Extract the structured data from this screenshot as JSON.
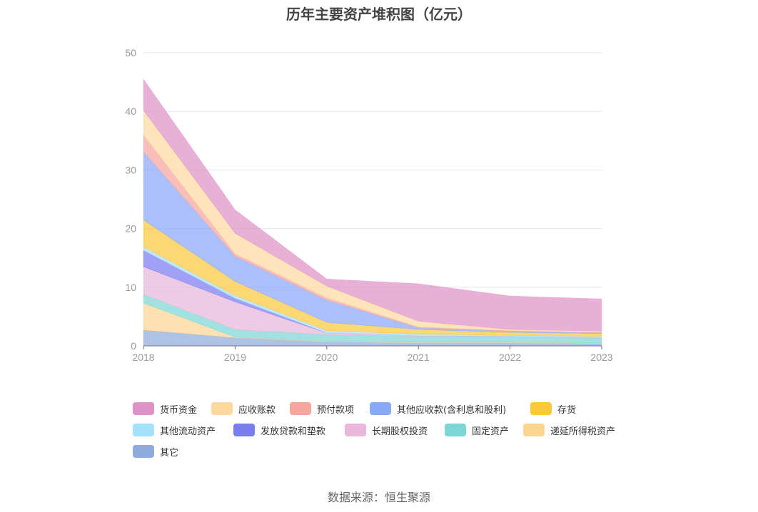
{
  "title": "历年主要资产堆积图（亿元）",
  "source": "数据来源：恒生聚源",
  "chart_data": {
    "type": "area",
    "stacked": true,
    "title": "历年主要资产堆积图（亿元）",
    "x": [
      "2018",
      "2019",
      "2020",
      "2021",
      "2022",
      "2023"
    ],
    "ylim": [
      0,
      50
    ],
    "yticks": [
      "0",
      "10",
      "20",
      "30",
      "40",
      "50"
    ],
    "grid": true,
    "legend_position": "bottom",
    "series": [
      {
        "name": "其它",
        "color": "#8faadc",
        "values": [
          2.7,
          1.4,
          0.7,
          0.5,
          0.5,
          0.4
        ]
      },
      {
        "name": "递延所得税资产",
        "color": "#fdd591",
        "values": [
          4.6,
          0.1,
          0.1,
          0.1,
          0.1,
          0.1
        ]
      },
      {
        "name": "固定资产",
        "color": "#7dd6d6",
        "values": [
          1.5,
          1.3,
          1.1,
          1.0,
          0.9,
          0.8
        ]
      },
      {
        "name": "长期股权投资",
        "color": "#e8b7da",
        "values": [
          4.7,
          4.7,
          0.3,
          0.1,
          0.1,
          0.1
        ]
      },
      {
        "name": "发放贷款和垫款",
        "color": "#7a7cf2",
        "values": [
          2.8,
          0.6,
          0.0,
          0.0,
          0.0,
          0.0
        ]
      },
      {
        "name": "其他流动资产",
        "color": "#a6e1fa",
        "values": [
          0.6,
          0.5,
          0.4,
          0.3,
          0.2,
          0.2
        ]
      },
      {
        "name": "存货",
        "color": "#fcc73b",
        "values": [
          4.6,
          2.4,
          1.4,
          0.8,
          0.5,
          0.5
        ]
      },
      {
        "name": "其他应收款(含利息和股利)",
        "color": "#8aa8f8",
        "values": [
          11.6,
          4.3,
          3.8,
          0.3,
          0.2,
          0.1
        ]
      },
      {
        "name": "预付款项",
        "color": "#f8a5a0",
        "values": [
          2.9,
          0.4,
          0.4,
          0.1,
          0.1,
          0.1
        ]
      },
      {
        "name": "应收账款",
        "color": "#fdd9a0",
        "values": [
          4.2,
          3.5,
          2.0,
          1.0,
          0.2,
          0.2
        ]
      },
      {
        "name": "货币资金",
        "color": "#df92c8",
        "values": [
          5.3,
          4.0,
          1.2,
          6.4,
          5.7,
          5.5
        ]
      }
    ],
    "legend_order": [
      "货币资金",
      "应收账款",
      "预付款项",
      "其他应收款(含利息和股利)",
      "存货",
      "其他流动资产",
      "发放贷款和垫款",
      "长期股权投资",
      "固定资产",
      "递延所得税资产",
      "其它"
    ]
  }
}
